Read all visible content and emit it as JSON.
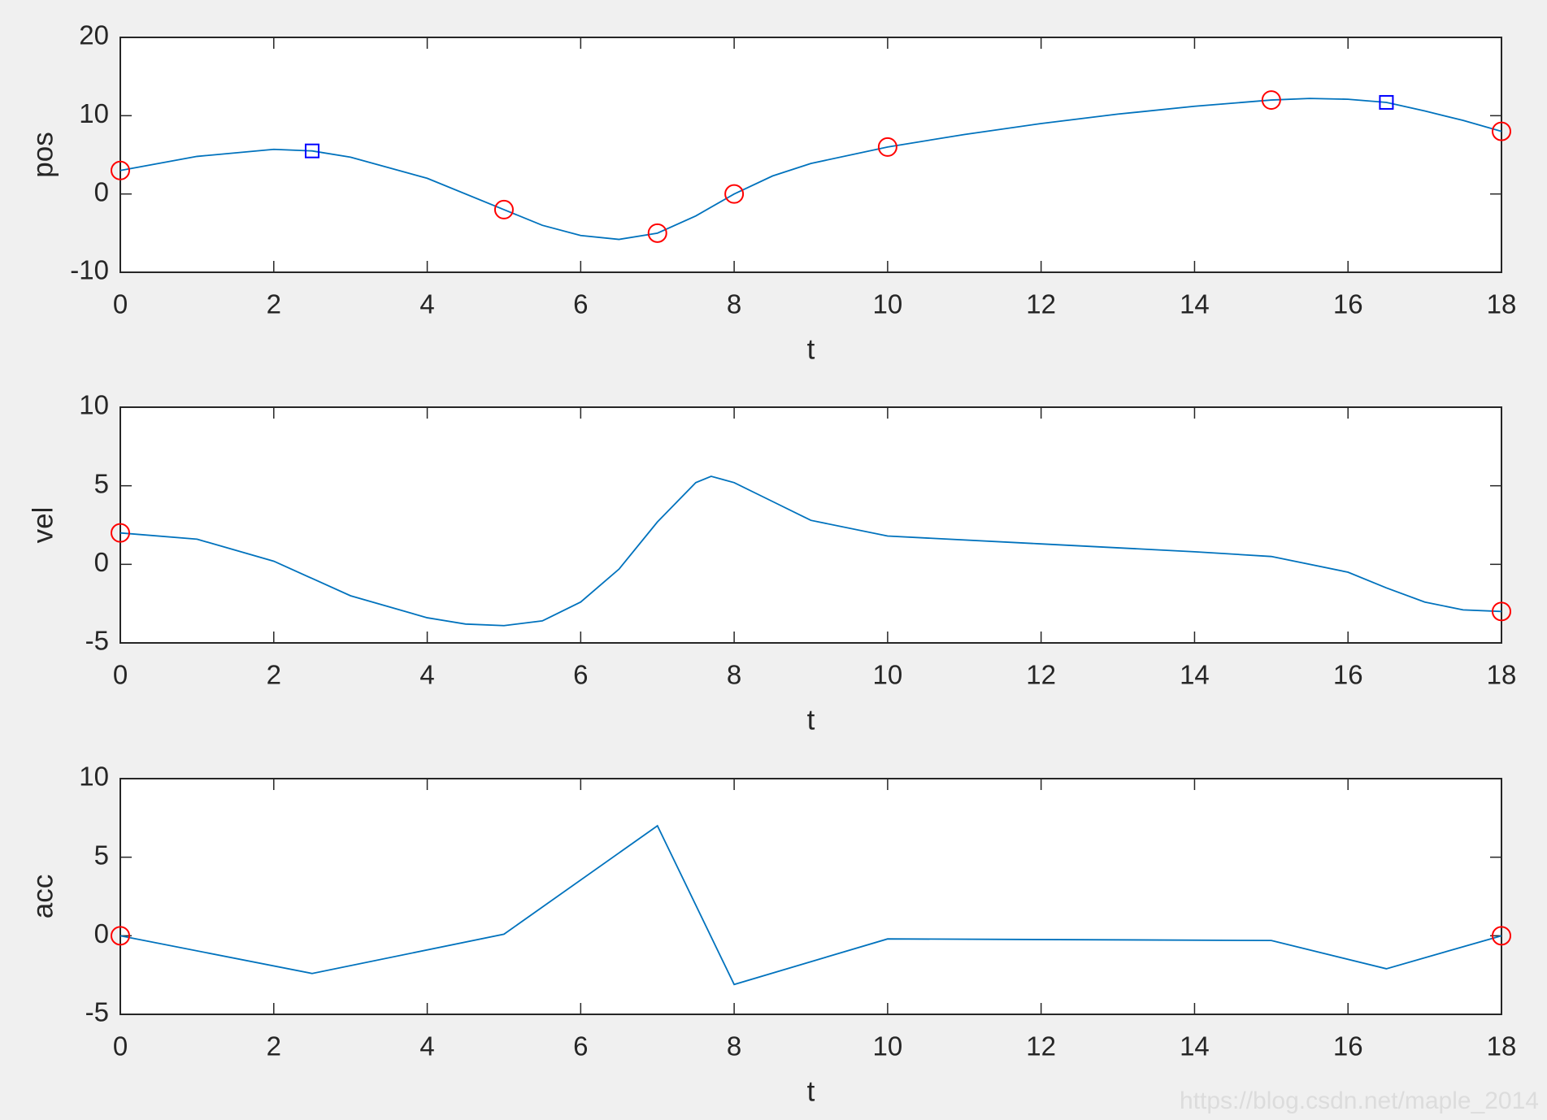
{
  "chart_data": [
    {
      "type": "line",
      "xlabel": "t",
      "ylabel": "pos",
      "xlim": [
        0,
        18
      ],
      "xticks": [
        0,
        2,
        4,
        6,
        8,
        10,
        12,
        14,
        16,
        18
      ],
      "ylim": [
        -10,
        20
      ],
      "yticks": [
        -10,
        0,
        10,
        20
      ],
      "series": [
        {
          "color": "#0072bd",
          "x": [
            0,
            1,
            2,
            2.5,
            3,
            4,
            5,
            5.5,
            6,
            6.5,
            7,
            7.5,
            8,
            8.5,
            9,
            10,
            11,
            12,
            13,
            14,
            15,
            15.5,
            16,
            16.5,
            17,
            17.5,
            18
          ],
          "values": [
            3,
            4.8,
            5.7,
            5.5,
            4.7,
            2,
            -2,
            -4,
            -5.3,
            -5.8,
            -5,
            -2.8,
            0,
            2.3,
            3.9,
            6,
            7.6,
            9,
            10.2,
            11.2,
            12,
            12.2,
            12.1,
            11.7,
            10.6,
            9.4,
            8
          ]
        },
        {
          "color": "#ff0000",
          "marker": "o",
          "x": [
            0,
            5,
            7,
            8,
            10,
            15,
            18
          ],
          "values": [
            3,
            -2,
            -5,
            0,
            6,
            12,
            8
          ]
        },
        {
          "color": "#0000ff",
          "marker": "s",
          "x": [
            2.5,
            16.5
          ],
          "values": [
            5.5,
            11.7
          ]
        }
      ]
    },
    {
      "type": "line",
      "xlabel": "t",
      "ylabel": "vel",
      "xlim": [
        0,
        18
      ],
      "xticks": [
        0,
        2,
        4,
        6,
        8,
        10,
        12,
        14,
        16,
        18
      ],
      "ylim": [
        -5,
        10
      ],
      "yticks": [
        -5,
        0,
        5,
        10
      ],
      "series": [
        {
          "color": "#0072bd",
          "x": [
            0,
            1,
            2,
            2.5,
            3,
            4,
            4.5,
            5,
            5.5,
            6,
            6.5,
            7,
            7.5,
            7.7,
            8,
            8.5,
            9,
            10,
            12,
            14,
            15,
            16,
            16.5,
            17,
            17.5,
            18
          ],
          "values": [
            2,
            1.6,
            0.2,
            -0.9,
            -2,
            -3.4,
            -3.8,
            -3.9,
            -3.6,
            -2.4,
            -0.3,
            2.7,
            5.2,
            5.6,
            5.2,
            4,
            2.8,
            1.8,
            1.3,
            0.8,
            0.5,
            -0.5,
            -1.5,
            -2.4,
            -2.9,
            -3
          ]
        },
        {
          "color": "#ff0000",
          "marker": "o",
          "x": [
            0,
            18
          ],
          "values": [
            2,
            -3
          ]
        }
      ]
    },
    {
      "type": "line",
      "xlabel": "t",
      "ylabel": "acc",
      "xlim": [
        0,
        18
      ],
      "xticks": [
        0,
        2,
        4,
        6,
        8,
        10,
        12,
        14,
        16,
        18
      ],
      "ylim": [
        -5,
        10
      ],
      "yticks": [
        -5,
        0,
        5,
        10
      ],
      "series": [
        {
          "color": "#0072bd",
          "x": [
            0,
            2.5,
            5,
            7,
            8,
            10,
            15,
            16.5,
            18
          ],
          "values": [
            0,
            -2.4,
            0.1,
            7,
            -3.1,
            -0.2,
            -0.3,
            -2.1,
            0
          ]
        },
        {
          "color": "#ff0000",
          "marker": "o",
          "x": [
            0,
            18
          ],
          "values": [
            0,
            0
          ]
        }
      ]
    }
  ],
  "watermark": "https://blog.csdn.net/maple_2014"
}
